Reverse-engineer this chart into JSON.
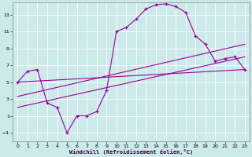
{
  "xlabel": "Windchill (Refroidissement éolien,°C)",
  "bg_color": "#cceaea",
  "line_color": "#990099",
  "xlim": [
    -0.5,
    23.5
  ],
  "ylim": [
    -2.0,
    14.5
  ],
  "xticks": [
    0,
    1,
    2,
    3,
    4,
    5,
    6,
    7,
    8,
    9,
    10,
    11,
    12,
    13,
    14,
    15,
    16,
    17,
    18,
    19,
    20,
    21,
    22,
    23
  ],
  "yticks": [
    -1,
    1,
    3,
    5,
    7,
    9,
    11,
    13
  ],
  "main_x": [
    0,
    1,
    2,
    3,
    4,
    5,
    6,
    7,
    8,
    9,
    10,
    11,
    12,
    13,
    14,
    15,
    16,
    17,
    18,
    19,
    20,
    21,
    22,
    23
  ],
  "main_y": [
    5.0,
    6.3,
    6.5,
    2.5,
    2.0,
    -1.0,
    1.0,
    1.0,
    1.5,
    4.0,
    11.0,
    11.5,
    12.5,
    13.7,
    14.2,
    14.3,
    14.0,
    13.3,
    10.5,
    9.5,
    7.5,
    7.8,
    8.0,
    6.5
  ],
  "trend1_x": [
    0,
    23
  ],
  "trend1_y": [
    5.0,
    6.5
  ],
  "trend2_x": [
    0,
    23
  ],
  "trend2_y": [
    3.3,
    9.5
  ],
  "trend3_x": [
    0,
    23
  ],
  "trend3_y": [
    2.0,
    8.0
  ]
}
